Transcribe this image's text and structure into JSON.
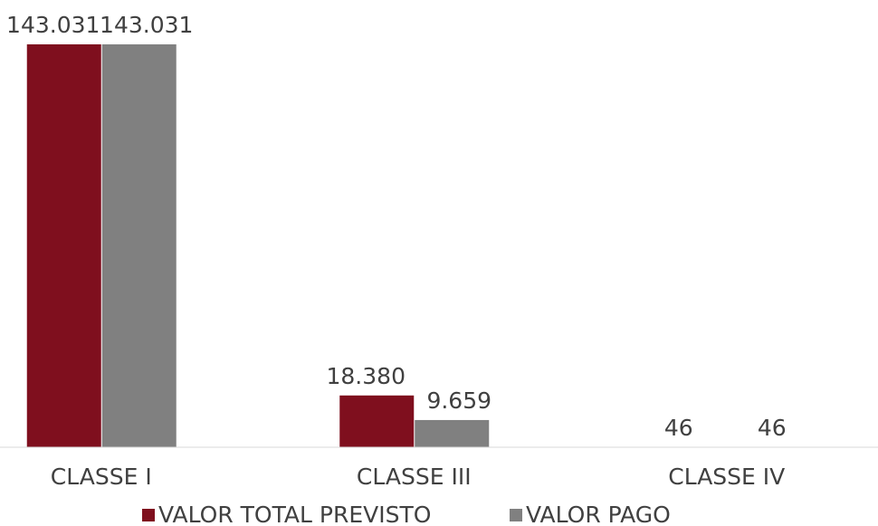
{
  "chart_data": {
    "type": "bar",
    "categories": [
      "CLASSE I",
      "CLASSE III",
      "CLASSE IV"
    ],
    "series": [
      {
        "name": "VALOR TOTAL PREVISTO",
        "color": "#7f0f1e",
        "values": [
          143031,
          18380,
          46
        ],
        "value_labels": [
          "143.031",
          "18.380",
          "46"
        ]
      },
      {
        "name": "VALOR PAGO",
        "color": "#808080",
        "values": [
          143031,
          9659,
          46
        ],
        "value_labels": [
          "143.031",
          "9.659",
          "46"
        ]
      }
    ],
    "ylim": [
      0,
      150000
    ]
  }
}
